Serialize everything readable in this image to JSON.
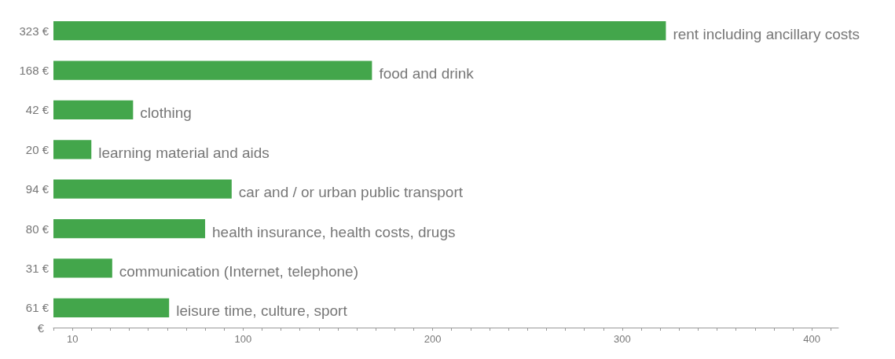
{
  "chart_data": {
    "type": "bar",
    "orientation": "horizontal",
    "categories": [
      "rent including ancillary costs",
      "food and drink",
      "clothing",
      "learning material and aids",
      "car and / or urban public transport",
      "health insurance, health costs, drugs",
      "communication (Internet, telephone)",
      "leisure time, culture, sport"
    ],
    "values": [
      323,
      168,
      42,
      20,
      94,
      80,
      31,
      61
    ],
    "value_labels": [
      "323 €",
      "168 €",
      "42 €",
      "20 €",
      "94 €",
      "80 €",
      "31 €",
      "61 €"
    ],
    "color": "#43a64b",
    "xlabel": "€",
    "xlim": [
      0,
      414
    ],
    "xticks": [
      {
        "value": 0,
        "label": null
      },
      10,
      {
        "value": 20,
        "label": null
      },
      {
        "value": 30,
        "label": null
      },
      {
        "value": 40,
        "label": null
      },
      {
        "value": 50,
        "label": null
      },
      {
        "value": 60,
        "label": null
      },
      {
        "value": 70,
        "label": null
      },
      {
        "value": 80,
        "label": null
      },
      {
        "value": 90,
        "label": null
      },
      100,
      {
        "value": 110,
        "label": null
      },
      {
        "value": 120,
        "label": null
      },
      {
        "value": 130,
        "label": null
      },
      {
        "value": 140,
        "label": null
      },
      {
        "value": 150,
        "label": null
      },
      {
        "value": 160,
        "label": null
      },
      {
        "value": 170,
        "label": null
      },
      {
        "value": 180,
        "label": null
      },
      {
        "value": 190,
        "label": null
      },
      200,
      {
        "value": 210,
        "label": null
      },
      {
        "value": 220,
        "label": null
      },
      {
        "value": 230,
        "label": null
      },
      {
        "value": 240,
        "label": null
      },
      {
        "value": 250,
        "label": null
      },
      {
        "value": 260,
        "label": null
      },
      {
        "value": 270,
        "label": null
      },
      {
        "value": 280,
        "label": null
      },
      {
        "value": 290,
        "label": null
      },
      300,
      {
        "value": 310,
        "label": null
      },
      {
        "value": 320,
        "label": null
      },
      {
        "value": 330,
        "label": null
      },
      {
        "value": 340,
        "label": null
      },
      {
        "value": 350,
        "label": null
      },
      {
        "value": 360,
        "label": null
      },
      {
        "value": 370,
        "label": null
      },
      {
        "value": 380,
        "label": null
      },
      {
        "value": 390,
        "label": null
      },
      400,
      {
        "value": 410,
        "label": null
      }
    ],
    "grid": false
  }
}
